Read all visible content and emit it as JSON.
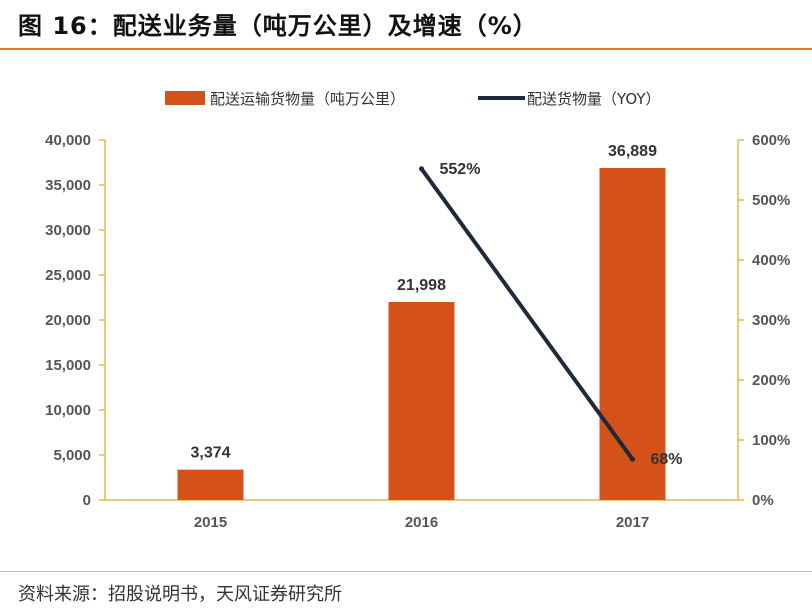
{
  "figure": {
    "title": "图 16：配送业务量（吨万公里）及增速（%）",
    "source": "资料来源：招股说明书，天风证券研究所"
  },
  "colors": {
    "bar": "#d4521a",
    "line": "#1e2a3a",
    "axis": "#e8b84a",
    "accent": "#e07a1f"
  },
  "chart_data": {
    "type": "bar",
    "categories": [
      "2015",
      "2016",
      "2017"
    ],
    "series": [
      {
        "name": "配送运输货物量（吨万公里）",
        "type": "bar",
        "axis": "left",
        "values": [
          3374,
          21998,
          36889
        ],
        "labels": [
          "3,374",
          "21,998",
          "36,889"
        ]
      },
      {
        "name": "配送货物量（YOY）",
        "type": "line",
        "axis": "right",
        "values": [
          null,
          552,
          68
        ],
        "labels": [
          "",
          "552%",
          "68%"
        ]
      }
    ],
    "y_left": {
      "lim": [
        0,
        40000
      ],
      "ticks": [
        "0",
        "5,000",
        "10,000",
        "15,000",
        "20,000",
        "25,000",
        "30,000",
        "35,000",
        "40,000"
      ]
    },
    "y_right": {
      "lim": [
        0,
        600
      ],
      "ticks": [
        "0%",
        "100%",
        "200%",
        "300%",
        "400%",
        "500%",
        "600%"
      ]
    },
    "legend_position": "top-center",
    "grid": false
  }
}
